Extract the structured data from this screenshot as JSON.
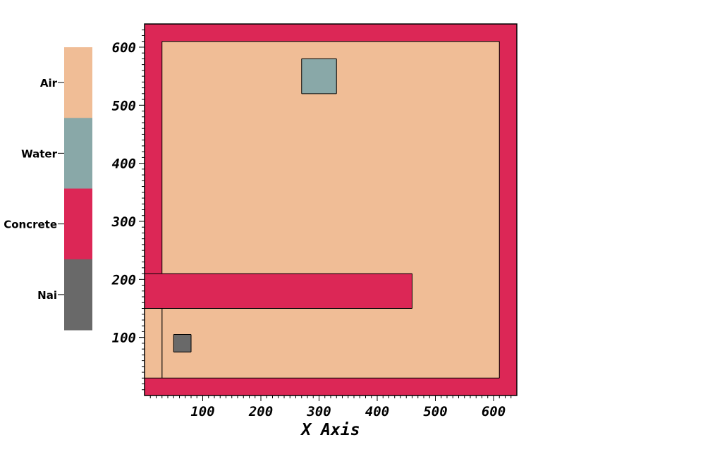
{
  "chart_data": {
    "type": "heatmap",
    "title": "",
    "xlabel": "X Axis",
    "ylabel": "",
    "xlim": [
      0,
      640
    ],
    "ylim": [
      0,
      640
    ],
    "x_ticks": [
      100,
      200,
      300,
      400,
      500,
      600
    ],
    "y_ticks": [
      100,
      200,
      300,
      400,
      500,
      600
    ],
    "legend": {
      "placement": "left",
      "entries": [
        {
          "name": "Air",
          "color": "#f0bd96"
        },
        {
          "name": "Water",
          "color": "#89a8a8"
        },
        {
          "name": "Concrete",
          "color": "#dc2756"
        },
        {
          "name": "Nai",
          "color": "#696969"
        }
      ]
    },
    "regions": [
      {
        "material": "Concrete",
        "x": [
          0,
          640
        ],
        "y": [
          0,
          640
        ]
      },
      {
        "material": "Air",
        "x": [
          30,
          610
        ],
        "y": [
          30,
          610
        ]
      },
      {
        "material": "Concrete",
        "x": [
          0,
          460
        ],
        "y": [
          150,
          210
        ]
      },
      {
        "material": "Air",
        "x": [
          0,
          30
        ],
        "y": [
          30,
          150
        ]
      },
      {
        "material": "Water",
        "x": [
          270,
          330
        ],
        "y": [
          520,
          580
        ]
      },
      {
        "material": "Nai",
        "x": [
          50,
          80
        ],
        "y": [
          75,
          105
        ]
      }
    ]
  }
}
